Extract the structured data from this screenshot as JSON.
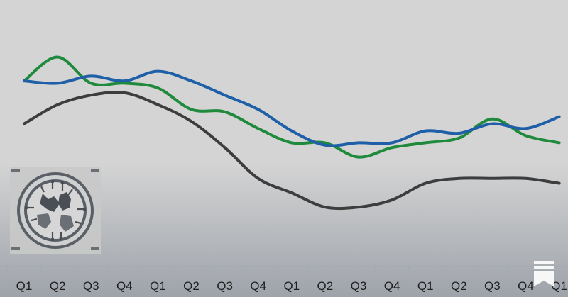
{
  "chart_data": {
    "type": "line",
    "title": "",
    "xlabel": "",
    "ylabel": "",
    "categories": [
      "Q1",
      "Q2",
      "Q3",
      "Q4",
      "Q1",
      "Q2",
      "Q3",
      "Q4",
      "Q1",
      "Q2",
      "Q3",
      "Q4",
      "Q1",
      "Q2",
      "Q3",
      "Q4",
      "Q1"
    ],
    "ylim": [
      0,
      100
    ],
    "grid": false,
    "legend": "none",
    "series": [
      {
        "color": "#1f5fa8",
        "values": [
          72,
          71,
          74,
          72,
          76,
          72,
          66,
          60,
          51,
          45,
          46,
          46,
          51,
          50,
          54,
          52,
          57
        ]
      },
      {
        "color": "#1f8a3c",
        "values": [
          72,
          82,
          71,
          71,
          69,
          60,
          59,
          52,
          46,
          46,
          40,
          44,
          46,
          48,
          56,
          49,
          46
        ]
      },
      {
        "color": "#3d3d3d",
        "values": [
          54,
          62,
          66,
          67,
          62,
          55,
          44,
          31,
          25,
          19,
          19,
          22,
          29,
          31,
          31,
          31,
          29
        ]
      }
    ]
  },
  "colors": {
    "background_top": "#d4d4d4",
    "background_bottom": "#9ea3aa",
    "axis_line": "#a3a8b0",
    "tick_text": "#1f1f1f"
  },
  "overlays": {
    "logo_icon": "circuit-animal-emblem-icon",
    "watermark_icon": "bookmark-stack-icon"
  }
}
